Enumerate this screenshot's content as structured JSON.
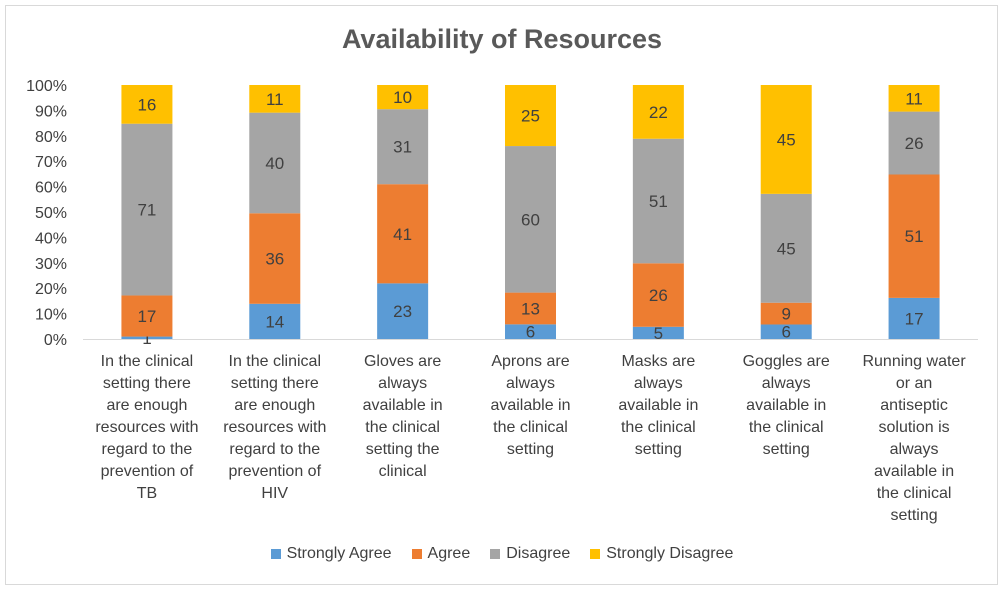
{
  "chart_data": {
    "type": "bar",
    "stacked": true,
    "percent_stacked": true,
    "title": "Availability of Resources",
    "categories": [
      "In the clinical setting there are enough resources with regard to the prevention of TB",
      "In the clinical setting there are enough resources with regard to the prevention of HIV",
      "Gloves are always available in the clinical setting the clinical",
      "Aprons are always available in the clinical setting",
      "Masks are always available in the clinical setting",
      "Goggles are always available in the clinical setting",
      "Running water or an antiseptic solution is always available in the clinical setting"
    ],
    "category_lines": [
      [
        "In the clinical",
        "setting there",
        "are enough",
        "resources with",
        "regard to the",
        "prevention of",
        "TB"
      ],
      [
        "In the clinical",
        "setting there",
        "are enough",
        "resources with",
        "regard to the",
        "prevention of",
        "HIV"
      ],
      [
        "Gloves are",
        "always",
        "available in",
        "the clinical",
        "setting the",
        "clinical"
      ],
      [
        "Aprons are",
        "always",
        "available in",
        "the clinical",
        "setting"
      ],
      [
        "Masks are",
        "always",
        "available in",
        "the clinical",
        "setting"
      ],
      [
        "Goggles are",
        "always",
        "available in",
        "the clinical",
        "setting"
      ],
      [
        "Running water",
        "or an",
        "antiseptic",
        "solution is",
        "always",
        "available in",
        "the clinical",
        "setting"
      ]
    ],
    "series": [
      {
        "name": "Strongly Agree",
        "color": "#5b9bd5",
        "values": [
          1,
          14,
          23,
          6,
          5,
          6,
          17
        ]
      },
      {
        "name": "Agree",
        "color": "#ed7d31",
        "values": [
          17,
          36,
          41,
          13,
          26,
          9,
          51
        ]
      },
      {
        "name": "Disagree",
        "color": "#a5a5a5",
        "values": [
          71,
          40,
          31,
          60,
          51,
          45,
          26
        ]
      },
      {
        "name": "Strongly Disagree",
        "color": "#ffc000",
        "values": [
          16,
          11,
          10,
          25,
          22,
          45,
          11
        ]
      }
    ],
    "y_ticks": [
      "0%",
      "10%",
      "20%",
      "30%",
      "40%",
      "50%",
      "60%",
      "70%",
      "80%",
      "90%",
      "100%"
    ],
    "ylim": [
      0,
      100
    ],
    "grid": false,
    "legend_position": "bottom"
  }
}
